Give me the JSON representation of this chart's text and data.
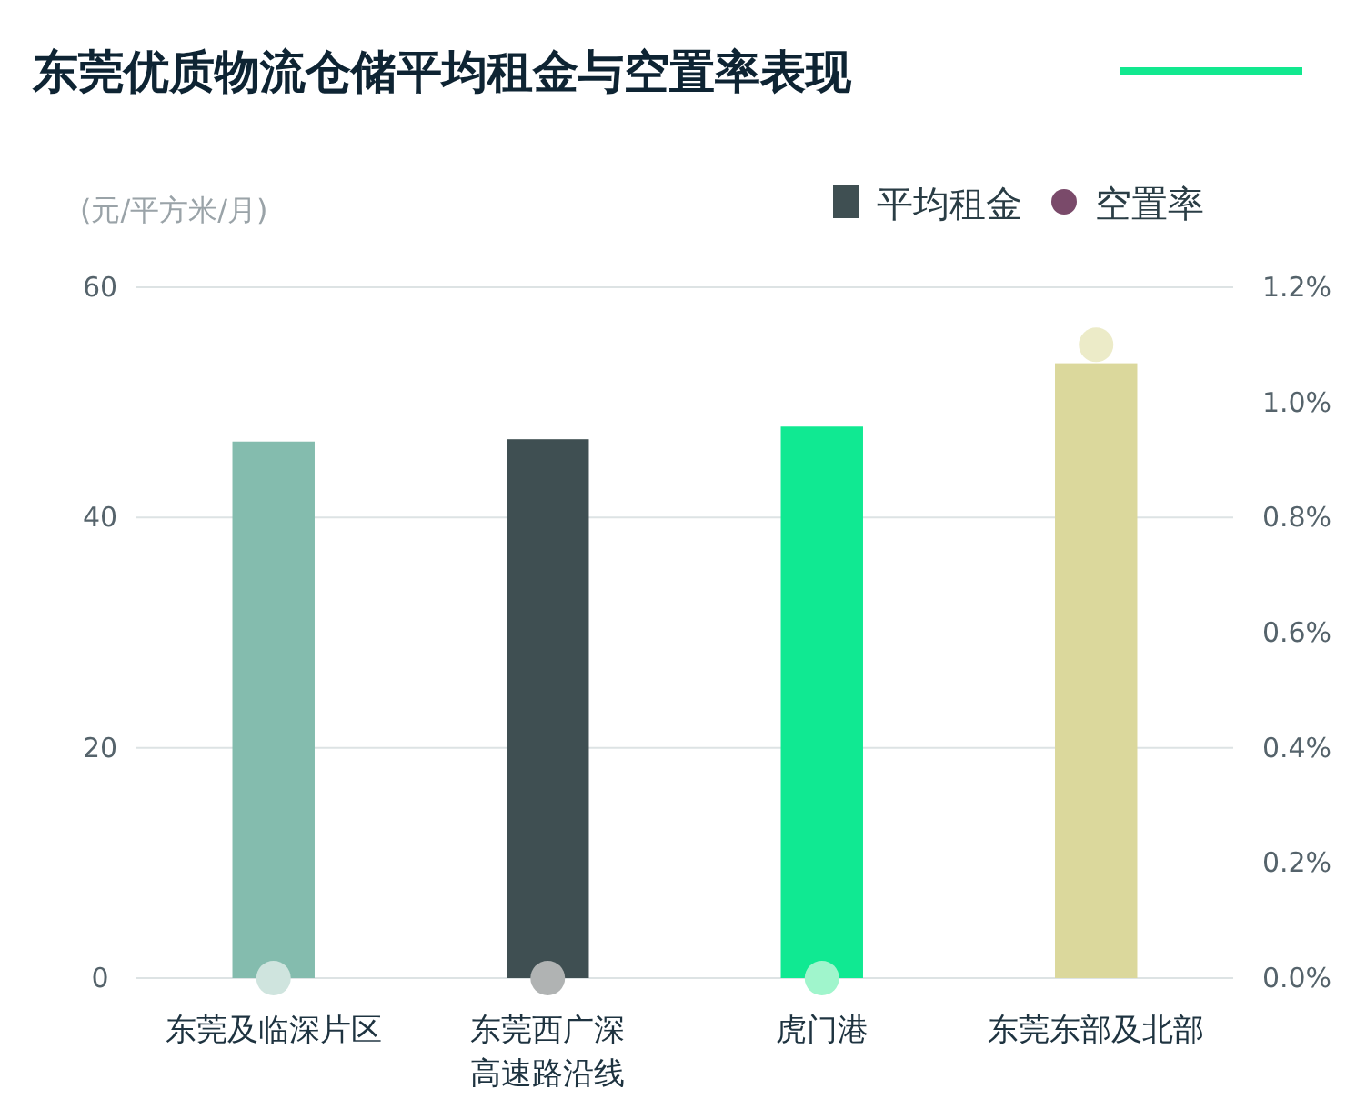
{
  "chart_data": {
    "type": "bar",
    "title": "东莞优质物流仓储平均租金与空置率表现",
    "ylabel": "(元/平方米/月)",
    "categories": [
      "东莞及临深片区",
      "东莞西广深高速路沿线",
      "虎门港",
      "东莞东部及北部"
    ],
    "series": [
      {
        "name": "平均租金",
        "color": "#3f4f52",
        "colors": [
          "#84bcae",
          "#3f4f52",
          "#10e992",
          "#dbd89c"
        ],
        "values": [
          46.6,
          46.8,
          47.9,
          53.4
        ]
      },
      {
        "name": "空置率",
        "type": "scatter",
        "axis": "y2",
        "color": "#7a4a6a",
        "colors": [
          "#cfe4de",
          "#b0b3b3",
          "#a0f5cc",
          "#ecebc8"
        ],
        "values": [
          0,
          0,
          0,
          1.1
        ],
        "marker": "circle"
      }
    ],
    "ylim": [
      0,
      60
    ],
    "yticks": [
      0,
      20,
      40,
      60
    ],
    "y2lim": [
      0,
      1.2
    ],
    "y2ticks": [
      {
        "value": 0,
        "label": "0.0%"
      },
      {
        "value": 0.2,
        "label": "0.2%"
      },
      {
        "value": 0.4,
        "label": "0.4%"
      },
      {
        "value": 0.6,
        "label": "0.6%"
      },
      {
        "value": 0.8,
        "label": "0.8%"
      },
      {
        "value": 1.0,
        "label": "1.0%"
      },
      {
        "value": 1.2,
        "label": "1.2%"
      }
    ],
    "grid": "y",
    "legend": "top right"
  }
}
